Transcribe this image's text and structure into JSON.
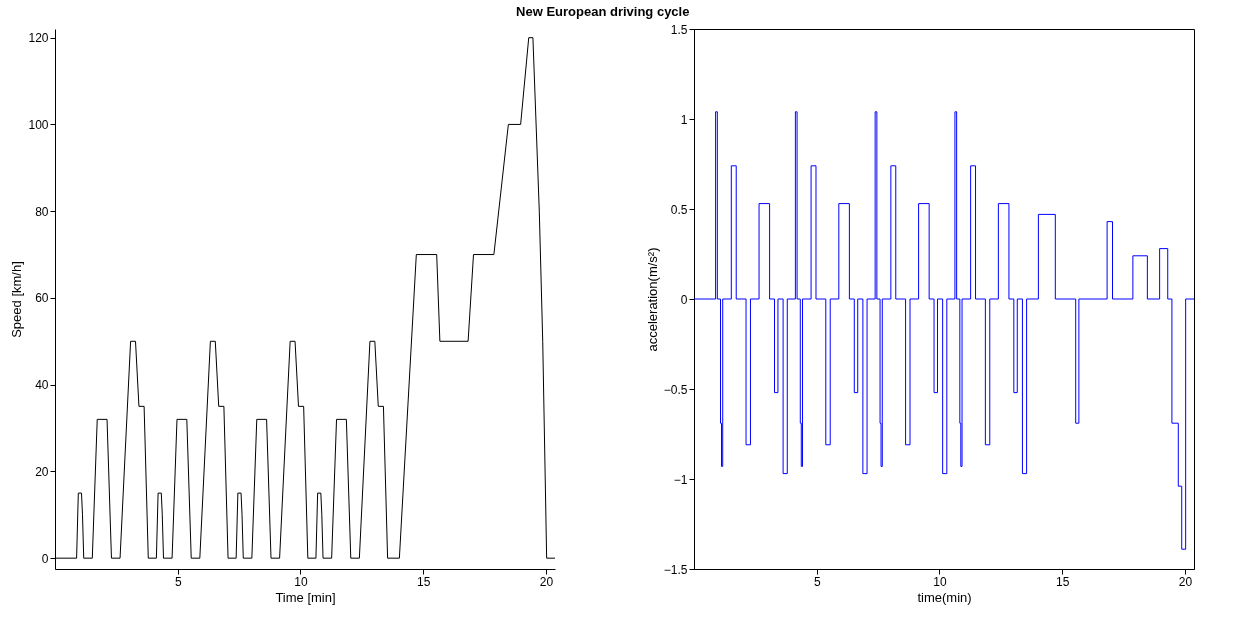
{
  "chart_data": [
    {
      "type": "line",
      "title": "New European driving cycle",
      "xlabel": "Time [min]",
      "ylabel": "Speed [km/h]",
      "xlim": [
        0,
        20.37
      ],
      "xticks": [
        5,
        10,
        15,
        20
      ],
      "ylim": [
        -2.5,
        122
      ],
      "yticks": [
        0,
        20,
        40,
        60,
        80,
        100,
        120
      ],
      "grid": false,
      "series": [
        {
          "color": "#000000",
          "x": [
            0,
            0.88,
            0.95,
            1.08,
            1.12,
            1.17,
            1.52,
            1.72,
            2.12,
            2.3,
            2.65,
            3.08,
            3.28,
            3.42,
            3.63,
            3.8,
            4.13,
            4.2,
            4.33,
            4.37,
            4.42,
            4.77,
            4.97,
            5.37,
            5.55,
            5.9,
            6.33,
            6.53,
            6.67,
            6.88,
            7.05,
            7.38,
            7.45,
            7.58,
            7.62,
            7.67,
            8.02,
            8.22,
            8.62,
            8.8,
            9.15,
            9.58,
            9.78,
            9.92,
            10.13,
            10.3,
            10.63,
            10.7,
            10.83,
            10.87,
            10.92,
            11.27,
            11.47,
            11.87,
            12.05,
            12.4,
            12.83,
            13.03,
            13.17,
            13.38,
            13.55,
            14.03,
            14.72,
            15.55,
            15.68,
            16.83,
            17.05,
            17.88,
            18.47,
            18.97,
            19.3,
            19.47,
            19.73,
            19.87,
            20.03,
            20.37
          ],
          "values": [
            0,
            0,
            15,
            15,
            10,
            0,
            0,
            32,
            32,
            0,
            0,
            50,
            50,
            35,
            35,
            0,
            0,
            15,
            15,
            10,
            0,
            0,
            32,
            32,
            0,
            0,
            50,
            50,
            35,
            35,
            0,
            0,
            15,
            15,
            10,
            0,
            0,
            32,
            32,
            0,
            0,
            50,
            50,
            35,
            35,
            0,
            0,
            15,
            15,
            10,
            0,
            0,
            32,
            32,
            0,
            0,
            50,
            50,
            35,
            35,
            0,
            0,
            70,
            70,
            50,
            50,
            70,
            70,
            100,
            100,
            120,
            120,
            80,
            50,
            0,
            0
          ]
        }
      ]
    },
    {
      "type": "step",
      "xlabel": "time(min)",
      "ylabel": "acceleration(m/s²)",
      "xlim": [
        0,
        20.37
      ],
      "xticks": [
        5,
        10,
        15,
        20
      ],
      "ylim": [
        -1.5,
        1.5
      ],
      "yticks": [
        -1.5,
        -1,
        -0.5,
        0,
        0.5,
        1,
        1.5
      ],
      "grid": false,
      "series": [
        {
          "color": "#0000ff",
          "x": [
            0,
            0.88,
            0.95,
            1.08,
            1.12,
            1.17,
            1.52,
            1.72,
            2.12,
            2.3,
            2.65,
            3.08,
            3.28,
            3.42,
            3.63,
            3.8,
            4.13,
            4.2,
            4.33,
            4.37,
            4.42,
            4.77,
            4.97,
            5.37,
            5.55,
            5.9,
            6.33,
            6.53,
            6.67,
            6.88,
            7.05,
            7.38,
            7.45,
            7.58,
            7.62,
            7.67,
            8.02,
            8.22,
            8.62,
            8.8,
            9.15,
            9.58,
            9.78,
            9.92,
            10.13,
            10.3,
            10.63,
            10.7,
            10.83,
            10.87,
            10.92,
            11.27,
            11.47,
            11.87,
            12.05,
            12.4,
            12.83,
            13.03,
            13.17,
            13.38,
            13.55,
            14.03,
            14.72,
            15.55,
            15.68,
            16.83,
            17.05,
            17.88,
            18.47,
            18.97,
            19.3,
            19.47,
            19.73,
            19.87,
            20.03,
            20.37
          ],
          "values": [
            0,
            1.04,
            0,
            -0.69,
            -0.93,
            0,
            0.74,
            0,
            -0.81,
            0,
            0.53,
            0,
            -0.52,
            0,
            -0.97,
            0,
            1.04,
            0,
            -0.69,
            -0.93,
            0,
            0.74,
            0,
            -0.81,
            0,
            0.53,
            0,
            -0.52,
            0,
            -0.97,
            0,
            1.04,
            0,
            -0.69,
            -0.93,
            0,
            0.74,
            0,
            -0.81,
            0,
            0.53,
            0,
            -0.52,
            0,
            -0.97,
            0,
            1.04,
            0,
            -0.69,
            -0.93,
            0,
            0.74,
            0,
            -0.81,
            0,
            0.53,
            0,
            -0.52,
            0,
            -0.97,
            0,
            0.47,
            0,
            -0.69,
            0,
            0.43,
            0,
            0.24,
            0,
            0.28,
            0,
            -0.69,
            -1.04,
            -1.39,
            0,
            0
          ]
        }
      ]
    }
  ]
}
